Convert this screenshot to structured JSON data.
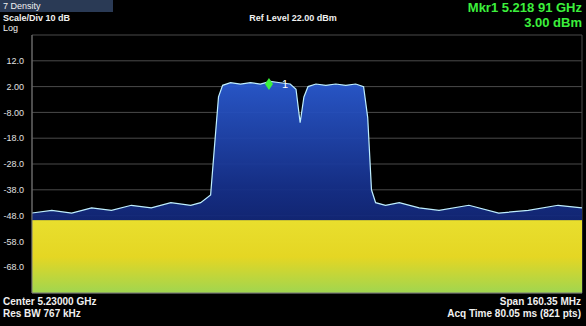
{
  "chart_data": {
    "type": "area",
    "title": "Ref Level 22.00 dBm",
    "annotations": [
      {
        "text": "7 Density"
      },
      {
        "text": "Scale/Div 10 dB"
      },
      {
        "text": "Log"
      },
      {
        "text": "Mkr1 5.218 91 GHz"
      },
      {
        "text": "3.00 dBm"
      },
      {
        "text": "Center 5.23000 GHz"
      },
      {
        "text": "Res BW 767 kHz"
      },
      {
        "text": "Span 160.35 MHz"
      },
      {
        "text": "Acq Time 80.05 ms (821 pts)"
      },
      {
        "text": "1",
        "x": 5.21891,
        "y": 3.0
      }
    ],
    "x": [
      5.149825,
      5.1556,
      5.1614,
      5.1672,
      5.173,
      5.1788,
      5.1846,
      5.1903,
      5.1961,
      5.199,
      5.2019,
      5.2031,
      5.2042,
      5.2054,
      5.2077,
      5.2106,
      5.2135,
      5.2164,
      5.2193,
      5.2222,
      5.2251,
      5.2268,
      5.228,
      5.2291,
      5.2303,
      5.2326,
      5.2355,
      5.2384,
      5.2413,
      5.2442,
      5.2465,
      5.2477,
      5.2488,
      5.25,
      5.2529,
      5.2569,
      5.2627,
      5.2685,
      5.2772,
      5.2859,
      5.2945,
      5.3032,
      5.310175
    ],
    "series": [
      {
        "type": "area",
        "color": "#bfefff",
        "values": [
          -47,
          -46,
          -47,
          -45,
          -46,
          -44,
          -45,
          -43,
          -44,
          -43,
          -40,
          -20,
          -2,
          2.5,
          3.5,
          3,
          3.5,
          3,
          4,
          3.5,
          3,
          1,
          -12,
          -2,
          2,
          3,
          2.5,
          3,
          2.5,
          3,
          2,
          -10,
          -38,
          -43,
          -44,
          -43,
          -45,
          -46,
          -44,
          -47,
          -46,
          -44,
          -45
        ]
      },
      {
        "type": "area",
        "color": "#f0e428",
        "values": [
          -50,
          -50,
          -50,
          -50,
          -50,
          -50,
          -50,
          -50,
          -50,
          -50,
          -50,
          -50,
          -50,
          -50,
          -50,
          -50,
          -50,
          -50,
          -50,
          -50,
          -50,
          -50,
          -50,
          -50,
          -50,
          -50,
          -50,
          -50,
          -50,
          -50,
          -50,
          -50,
          -50,
          -50,
          -50,
          -50,
          -50,
          -50,
          -50,
          -50,
          -50,
          -50,
          -50
        ]
      }
    ],
    "xlim": [
      5.149825,
      5.310175
    ],
    "xticks": [
      5.149825,
      5.16586,
      5.181895,
      5.19793,
      5.213965,
      5.23,
      5.246035,
      5.26207,
      5.278105,
      5.29414,
      5.310175
    ],
    "ylim": [
      -78,
      22
    ],
    "yticks": [
      {
        "value": 12,
        "label": "12.0"
      },
      {
        "value": 2,
        "label": "2.00"
      },
      {
        "value": -8,
        "label": "-8.00"
      },
      {
        "value": -18,
        "label": "-18.0"
      },
      {
        "value": -28,
        "label": "-28.0"
      },
      {
        "value": -38,
        "label": "-38.0"
      },
      {
        "value": -48,
        "label": "-48.0"
      },
      {
        "value": -58,
        "label": "-58.0"
      },
      {
        "value": -68,
        "label": "-68.0"
      }
    ],
    "grid": true,
    "tick_labels": "y"
  }
}
